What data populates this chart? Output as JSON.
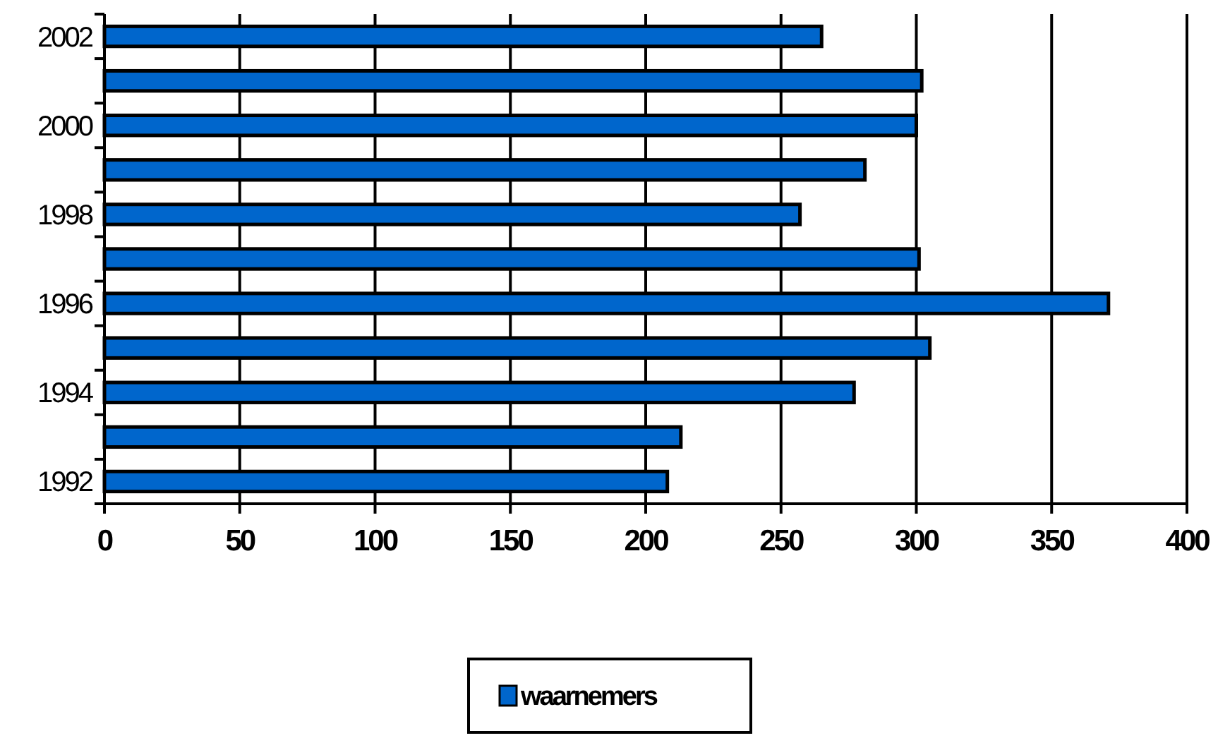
{
  "chart_data": {
    "type": "bar",
    "orientation": "horizontal",
    "categories": [
      "2002",
      null,
      "2000",
      null,
      "1998",
      null,
      "1996",
      null,
      "1994",
      null,
      "1992"
    ],
    "series": [
      {
        "name": "waarnemers",
        "color": "#0066cc",
        "values": [
          265,
          302,
          300,
          281,
          257,
          301,
          371,
          305,
          277,
          213,
          208
        ]
      }
    ],
    "xlim": [
      0,
      400
    ],
    "xticks": [
      0,
      50,
      100,
      150,
      200,
      250,
      300,
      350,
      400
    ],
    "grid": "x",
    "legend": "bottom"
  }
}
